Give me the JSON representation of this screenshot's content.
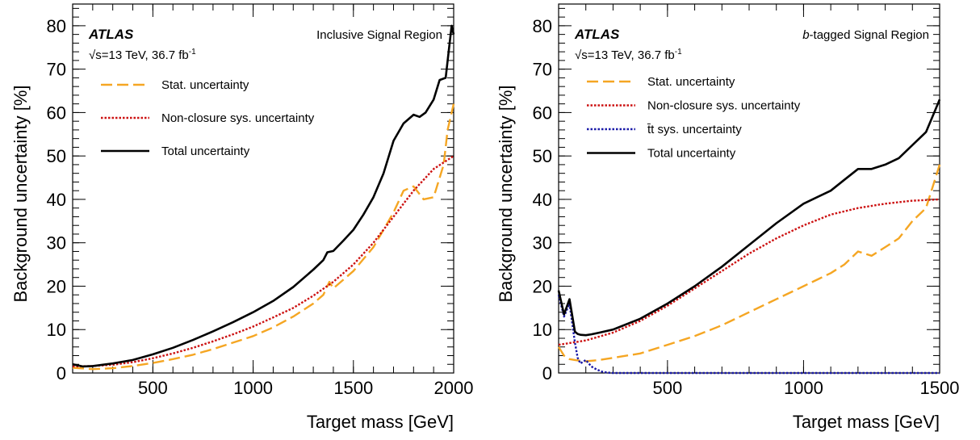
{
  "chart_data": [
    {
      "type": "line",
      "xlabel": "Target mass [GeV]",
      "ylabel": "Background uncertainty [%]",
      "xlim": [
        100,
        2000
      ],
      "ylim": [
        0,
        85
      ],
      "xticks": [
        "500",
        "1000",
        "1500",
        "2000"
      ],
      "yticks": [
        "0",
        "10",
        "20",
        "30",
        "40",
        "50",
        "60",
        "70",
        "80"
      ],
      "experiment": "ATLAS",
      "energy": "√s=13 TeV, 36.7 fb",
      "lumi_exp": "-1",
      "region": "Inclusive Signal Region",
      "legend_position": "top-left",
      "series": [
        {
          "name": "Stat. uncertainty",
          "color": "#f5a623",
          "style": "dashed",
          "x": [
            100,
            200,
            300,
            400,
            500,
            600,
            700,
            800,
            900,
            1000,
            1100,
            1200,
            1300,
            1350,
            1380,
            1400,
            1500,
            1600,
            1650,
            1700,
            1750,
            1800,
            1850,
            1900,
            1950,
            1970,
            1990,
            2000
          ],
          "y": [
            1.2,
            0.9,
            1.1,
            1.6,
            2.3,
            3.2,
            4.2,
            5.5,
            7,
            8.5,
            10.5,
            13,
            16,
            18,
            21,
            19.5,
            23.5,
            29,
            33,
            37,
            42,
            43,
            40,
            40.5,
            48,
            56,
            60,
            62
          ]
        },
        {
          "name": "Non-closure sys. uncertainty",
          "color": "#cc1111",
          "style": "dotted",
          "x": [
            100,
            200,
            300,
            400,
            500,
            600,
            700,
            800,
            900,
            1000,
            1100,
            1200,
            1300,
            1400,
            1500,
            1600,
            1700,
            1800,
            1900,
            2000
          ],
          "y": [
            1.5,
            1.6,
            1.9,
            2.5,
            3.4,
            4.5,
            5.8,
            7.3,
            8.9,
            10.7,
            12.8,
            15,
            17.8,
            21,
            25,
            30,
            36,
            42,
            47,
            50
          ]
        },
        {
          "name": "Total uncertainty",
          "color": "#000000",
          "style": "solid",
          "x": [
            100,
            150,
            200,
            300,
            400,
            500,
            600,
            700,
            800,
            900,
            1000,
            1100,
            1200,
            1300,
            1350,
            1370,
            1400,
            1450,
            1500,
            1550,
            1600,
            1650,
            1700,
            1750,
            1800,
            1830,
            1860,
            1900,
            1930,
            1960,
            1980,
            1990,
            2000
          ],
          "y": [
            2,
            1.5,
            1.6,
            2.2,
            3,
            4.3,
            5.8,
            7.6,
            9.6,
            11.7,
            14,
            16.6,
            19.8,
            23.8,
            26,
            27.8,
            28.1,
            30.5,
            33,
            36.5,
            40.5,
            46,
            53.5,
            57.5,
            59.5,
            59,
            60,
            63,
            67.5,
            68,
            76,
            80,
            78
          ]
        }
      ]
    },
    {
      "type": "line",
      "xlabel": "Target mass [GeV]",
      "ylabel": "Background uncertainty [%]",
      "xlim": [
        100,
        1500
      ],
      "ylim": [
        0,
        85
      ],
      "xticks": [
        "500",
        "1000",
        "1500"
      ],
      "yticks": [
        "0",
        "10",
        "20",
        "30",
        "40",
        "50",
        "60",
        "70",
        "80"
      ],
      "experiment": "ATLAS",
      "energy": "√s=13 TeV, 36.7 fb",
      "lumi_exp": "-1",
      "region_italic": "b",
      "region": "-tagged Signal Region",
      "legend_position": "top-left",
      "series": [
        {
          "name": "Stat. uncertainty",
          "color": "#f5a623",
          "style": "dashed",
          "x": [
            100,
            120,
            140,
            160,
            180,
            200,
            250,
            300,
            400,
            500,
            600,
            700,
            800,
            900,
            1000,
            1100,
            1150,
            1200,
            1250,
            1300,
            1350,
            1400,
            1450,
            1480,
            1500
          ],
          "y": [
            6,
            4,
            3.2,
            3,
            2.8,
            2.7,
            3,
            3.5,
            4.5,
            6.5,
            8.5,
            11,
            14,
            17,
            20,
            23,
            25,
            28,
            27,
            29,
            31,
            35,
            38,
            44,
            48
          ]
        },
        {
          "name": "Non-closure sys. uncertainty",
          "color": "#cc1111",
          "style": "dotted",
          "x": [
            100,
            200,
            300,
            400,
            500,
            600,
            700,
            800,
            900,
            1000,
            1100,
            1200,
            1300,
            1400,
            1500
          ],
          "y": [
            6.5,
            7.5,
            9.3,
            12,
            15.5,
            19.5,
            23.5,
            27.5,
            31,
            34,
            36.5,
            38,
            39,
            39.7,
            40
          ]
        },
        {
          "name": "t̄t sys. uncertainty",
          "color": "#1a1aa8",
          "style": "dotted",
          "x": [
            100,
            120,
            140,
            160,
            170,
            180,
            200,
            220,
            240,
            260,
            280,
            300,
            1500
          ],
          "y": [
            18,
            13,
            16,
            7,
            3.5,
            2.2,
            3,
            1.5,
            0.8,
            0.3,
            0.1,
            0,
            0
          ]
        },
        {
          "name": "Total uncertainty",
          "color": "#000000",
          "style": "solid",
          "x": [
            100,
            120,
            140,
            160,
            170,
            180,
            200,
            220,
            250,
            300,
            400,
            500,
            600,
            700,
            800,
            900,
            1000,
            1100,
            1150,
            1200,
            1250,
            1300,
            1350,
            1400,
            1450,
            1480,
            1500
          ],
          "y": [
            19,
            13.5,
            17,
            9.5,
            9,
            8.8,
            8.7,
            8.9,
            9.3,
            10,
            12.5,
            16,
            20,
            24.5,
            29.5,
            34.5,
            39,
            42,
            44.5,
            47,
            47,
            48,
            49.5,
            52.5,
            55.5,
            60,
            63
          ]
        }
      ]
    }
  ]
}
